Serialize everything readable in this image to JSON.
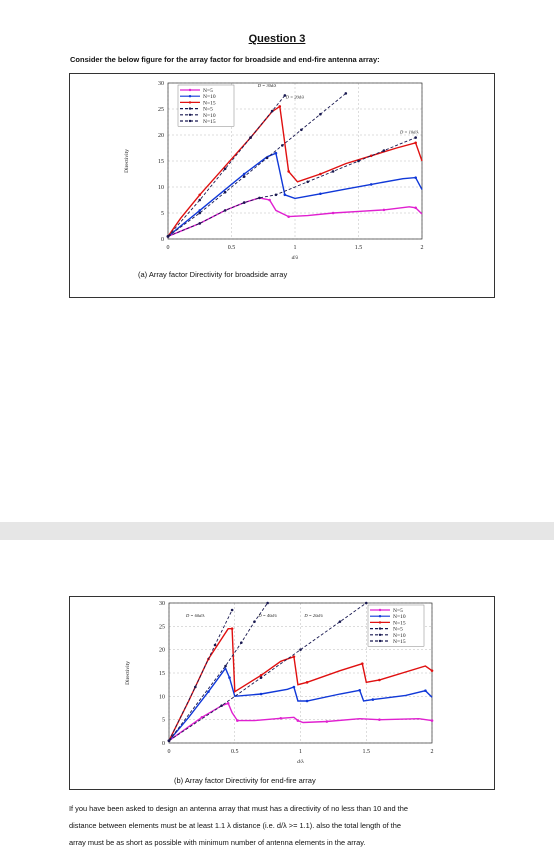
{
  "title": "Question 3",
  "intro": "Consider the below figure for the array factor for broadside and end-fire antenna array:",
  "question_lines": [
    "If you have been asked to design an antenna array that must has a directivity of no less than 10 and the",
    "distance between elements must be at least 1.1 λ distance  (i.e. d/λ >= 1.1). also the total length of the",
    "array must be as short as possible with minimum number of antenna elements in the array."
  ],
  "colors": {
    "n5": "#e020d0",
    "n10": "#1038d8",
    "n15": "#e01010",
    "theory": "#181850",
    "grid": "#bbbbbb"
  },
  "chart_data": [
    {
      "type": "line",
      "caption": "(a) Array factor Directivity for broadside array",
      "xlabel": "d/λ",
      "ylabel": "Directivity",
      "xlim": [
        0,
        2
      ],
      "ylim": [
        0,
        30
      ],
      "x_ticks": [
        "0",
        "0.5",
        "1",
        "1.5",
        "2"
      ],
      "y_ticks": [
        "0",
        "5",
        "10",
        "15",
        "20",
        "25",
        "30"
      ],
      "grid": true,
      "legend_position": "top-left",
      "annotations": [
        "D = 30d/λ",
        "D = 20d/λ",
        "D = 10d/λ"
      ],
      "series": [
        {
          "name": "N=5",
          "style": "solid",
          "color": "#e020d0",
          "x": [
            0.0,
            0.1,
            0.25,
            0.45,
            0.6,
            0.72,
            0.8,
            0.85,
            0.95,
            1.1,
            1.3,
            1.5,
            1.7,
            1.9,
            1.95,
            2.0
          ],
          "y": [
            0.5,
            1.5,
            3.0,
            5.5,
            7.0,
            7.9,
            7.5,
            5.5,
            4.3,
            4.5,
            5.0,
            5.3,
            5.6,
            6.2,
            6.0,
            4.8
          ]
        },
        {
          "name": "N=10",
          "style": "solid",
          "color": "#1038d8",
          "x": [
            0.0,
            0.1,
            0.25,
            0.45,
            0.6,
            0.78,
            0.85,
            0.88,
            0.92,
            1.0,
            1.2,
            1.4,
            1.6,
            1.85,
            1.95,
            2.0
          ],
          "y": [
            0.5,
            2.5,
            5.5,
            9.5,
            12.5,
            15.8,
            16.5,
            13.0,
            8.5,
            7.8,
            8.7,
            9.6,
            10.5,
            11.6,
            11.8,
            9.5
          ]
        },
        {
          "name": "N=15",
          "style": "solid",
          "color": "#e01010",
          "x": [
            0.0,
            0.1,
            0.25,
            0.45,
            0.65,
            0.82,
            0.88,
            0.9,
            0.95,
            1.02,
            1.2,
            1.4,
            1.6,
            1.8,
            1.95,
            2.0
          ],
          "y": [
            0.5,
            4.0,
            8.5,
            14.0,
            19.5,
            24.5,
            25.5,
            22.0,
            13.0,
            11.0,
            12.5,
            14.5,
            16.0,
            17.5,
            18.5,
            15.0
          ]
        },
        {
          "name": "N=5",
          "style": "dashed",
          "color": "#181850",
          "x": [
            0.0,
            0.25,
            0.45,
            0.6,
            0.72,
            0.85,
            1.1,
            1.3,
            1.5,
            1.7,
            1.95
          ],
          "y": [
            0.5,
            3.0,
            5.5,
            7.0,
            7.9,
            8.5,
            11.0,
            13.0,
            15.0,
            17.0,
            19.5
          ]
        },
        {
          "name": "N=10",
          "style": "dashed",
          "color": "#181850",
          "x": [
            0.0,
            0.25,
            0.45,
            0.6,
            0.78,
            0.9,
            1.05,
            1.2,
            1.4
          ],
          "y": [
            0.5,
            5.0,
            9.0,
            12.0,
            15.6,
            18.0,
            21.0,
            24.0,
            28.0
          ]
        },
        {
          "name": "N=15",
          "style": "dashed",
          "color": "#181850",
          "x": [
            0.0,
            0.25,
            0.45,
            0.65,
            0.82,
            0.92
          ],
          "y": [
            0.5,
            7.5,
            13.5,
            19.5,
            24.6,
            27.6
          ]
        }
      ]
    },
    {
      "type": "line",
      "caption": "(b) Array factor Directivity for end-fire array",
      "xlabel": "d/λ",
      "ylabel": "Directivity",
      "xlim": [
        0,
        2
      ],
      "ylim": [
        0,
        30
      ],
      "x_ticks": [
        "0",
        "0.5",
        "1",
        "1.5",
        "2"
      ],
      "y_ticks": [
        "0",
        "5",
        "10",
        "15",
        "20",
        "25",
        "30"
      ],
      "grid": true,
      "legend_position": "top-right",
      "annotations": [
        "D = 60d/λ",
        "D = 40d/λ",
        "D = 20d/λ"
      ],
      "series": [
        {
          "name": "N=5",
          "style": "solid",
          "color": "#e020d0",
          "x": [
            0.0,
            0.1,
            0.25,
            0.4,
            0.45,
            0.48,
            0.52,
            0.65,
            0.85,
            0.95,
            0.98,
            1.02,
            1.2,
            1.45,
            1.6,
            1.9,
            2.0
          ],
          "y": [
            0.5,
            2.5,
            5.5,
            8.0,
            8.5,
            6.5,
            4.8,
            4.8,
            5.3,
            5.5,
            4.8,
            4.4,
            4.6,
            5.2,
            5.0,
            5.2,
            4.8
          ]
        },
        {
          "name": "N=10",
          "style": "solid",
          "color": "#1038d8",
          "x": [
            0.0,
            0.15,
            0.3,
            0.43,
            0.46,
            0.5,
            0.7,
            0.9,
            0.95,
            0.98,
            1.05,
            1.3,
            1.45,
            1.48,
            1.55,
            1.8,
            1.95,
            2.0
          ],
          "y": [
            0.5,
            5.5,
            11.0,
            16.0,
            14.0,
            10.0,
            10.5,
            11.5,
            12.0,
            9.0,
            9.0,
            10.5,
            11.3,
            9.0,
            9.3,
            10.2,
            11.2,
            9.8
          ]
        },
        {
          "name": "N=15",
          "style": "solid",
          "color": "#e01010",
          "x": [
            0.0,
            0.15,
            0.3,
            0.45,
            0.48,
            0.5,
            0.7,
            0.85,
            0.95,
            0.98,
            1.05,
            1.3,
            1.47,
            1.5,
            1.6,
            1.95,
            2.0
          ],
          "y": [
            0.5,
            9.0,
            18.0,
            24.5,
            24.5,
            11.0,
            14.5,
            17.5,
            18.5,
            12.5,
            13.0,
            15.5,
            17.0,
            13.0,
            13.5,
            16.5,
            15.5
          ]
        },
        {
          "name": "N=5",
          "style": "dashed",
          "color": "#181850",
          "x": [
            0.0,
            0.4,
            0.7,
            1.0,
            1.3,
            1.5
          ],
          "y": [
            0.5,
            8.0,
            14.0,
            20.0,
            26.0,
            30.0
          ]
        },
        {
          "name": "N=10",
          "style": "dashed",
          "color": "#181850",
          "x": [
            0.0,
            0.43,
            0.55,
            0.65,
            0.75
          ],
          "y": [
            0.5,
            16.5,
            21.5,
            26.0,
            30.0
          ]
        },
        {
          "name": "N=15",
          "style": "dashed",
          "color": "#181850",
          "x": [
            0.0,
            0.2,
            0.35,
            0.48
          ],
          "y": [
            0.5,
            12.0,
            21.0,
            28.5
          ]
        }
      ]
    }
  ]
}
